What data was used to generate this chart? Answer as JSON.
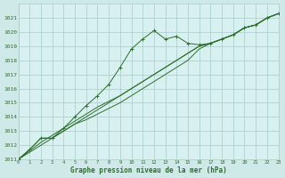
{
  "title": "Graphe pression niveau de la mer (hPa)",
  "background_color": "#cfe8e8",
  "plot_bg_color": "#d8f0f0",
  "line_color": "#2d6e2d",
  "marker_color": "#2d6e2d",
  "grid_color": "#a8cccc",
  "text_color": "#2d6e2d",
  "ylim": [
    1011,
    1022
  ],
  "xlim": [
    0,
    23
  ],
  "yticks": [
    1011,
    1012,
    1013,
    1014,
    1015,
    1016,
    1017,
    1018,
    1019,
    1020,
    1021
  ],
  "xticks": [
    0,
    1,
    2,
    3,
    4,
    5,
    6,
    7,
    8,
    9,
    10,
    11,
    12,
    13,
    14,
    15,
    16,
    17,
    18,
    19,
    20,
    21,
    22,
    23
  ],
  "series_main": [
    1011.0,
    1011.7,
    1012.5,
    1012.5,
    1013.2,
    1014.0,
    1014.8,
    1015.5,
    1016.3,
    1017.5,
    1018.8,
    1019.5,
    1020.1,
    1019.5,
    1019.7,
    1019.2,
    1019.1,
    1019.2,
    1019.5,
    1019.8,
    1020.3,
    1020.5,
    1021.0,
    1021.3
  ],
  "series_smooth": [
    [
      1011.0,
      1011.7,
      1012.5,
      1012.5,
      1013.0,
      1013.5,
      1014.0,
      1014.5,
      1015.0,
      1015.5,
      1016.0,
      1016.5,
      1017.0,
      1017.5,
      1018.0,
      1018.5,
      1019.0,
      1019.2,
      1019.5,
      1019.8,
      1020.3,
      1020.5,
      1021.0,
      1021.3
    ],
    [
      1011.0,
      1011.6,
      1012.2,
      1012.7,
      1013.2,
      1013.7,
      1014.2,
      1014.7,
      1015.1,
      1015.5,
      1016.0,
      1016.5,
      1017.0,
      1017.5,
      1018.0,
      1018.5,
      1019.0,
      1019.2,
      1019.5,
      1019.8,
      1020.3,
      1020.5,
      1021.0,
      1021.3
    ],
    [
      1011.0,
      1011.5,
      1012.0,
      1012.5,
      1013.0,
      1013.5,
      1013.8,
      1014.2,
      1014.6,
      1015.0,
      1015.5,
      1016.0,
      1016.5,
      1017.0,
      1017.5,
      1018.0,
      1018.8,
      1019.2,
      1019.5,
      1019.8,
      1020.3,
      1020.5,
      1021.0,
      1021.3
    ]
  ]
}
